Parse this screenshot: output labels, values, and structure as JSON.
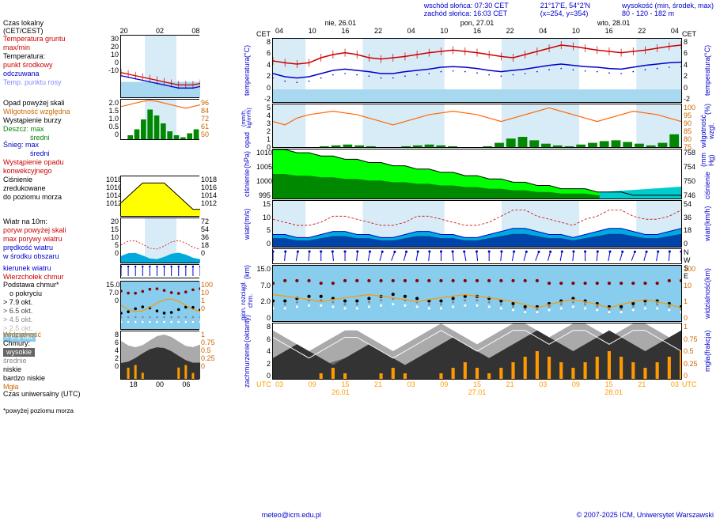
{
  "header": {
    "sunrise": "wschód słońca: 07:30 CET",
    "sunset": "zachód słońca: 16:03 CET",
    "coords": "21°17'E, 54°2'N",
    "xy": "(x=254, y=354)",
    "elevation": "wysokość (min, środek, max)",
    "elev_vals": "80 - 120 - 182 m"
  },
  "left_labels": {
    "local_time": "Czas lokalny",
    "tz": "(CET/CEST)",
    "ground_temp": "Temperatura gruntu",
    "maxmin": "max/min",
    "temp": "Temperatura:",
    "midpoint": "punkt środkowy",
    "felt": "odczuwana",
    "dewpoint": "Temp. punktu rosy",
    "precip_overflow": "Opad powyżej skali",
    "rel_humidity": "Wilgotność względna",
    "storm": "Wystąpienie burzy",
    "rain_max": "Deszcz: max",
    "rain_avg": "średni",
    "snow_max": "Śnieg: max",
    "snow_avg": "średni",
    "conv_precip": "Wystąpienie opadu",
    "conv_precip2": "konwekcyjnego",
    "pressure": "Ciśnienie",
    "pressure2": "zredukowane",
    "pressure3": "do poziomu morza",
    "wind10m": "Wiatr na 10m:",
    "gust_over": "poryw powyżej skali",
    "max_gust": "max porywy wiatru",
    "wind_speed": "prędkość wiatru",
    "wind_center": "w środku obszaru",
    "wind_dir": "kierunek wiatru",
    "cloud_top": "Wierzchołek chmur",
    "cloud_base": "Podstawa chmur*",
    "coverage": "o pokryciu",
    "okt79": "> 7.9 okt.",
    "okt65": "> 6.5 okt.",
    "okt45": "> 4.5 okt.",
    "okt25": "> 2.5 okt.",
    "okt01": "> 0.1 okt.",
    "visibility": "Widzialność",
    "clouds": "Chmury:",
    "high": "wysokie",
    "mid": "średnie",
    "low": "niskie",
    "vlow": "bardzo niskie",
    "fog": "Mgła",
    "utc": "Czas uniwersalny (UTC)",
    "note": "*powyżej poziomu morza"
  },
  "right_labels": {
    "temp": "temperatura",
    "temp_c": "(°C)",
    "precip": "opad",
    "precip_unit": "(mm/h, kg/m²/h)",
    "humidity": "wilgotność wzgl.",
    "humidity_unit": "(%)",
    "pressure": "ciśnienie",
    "pressure_unit": "(hPa)",
    "pressure_r": "ciśnienie",
    "pressure_r_unit": "(mm Hg)",
    "wind": "wiatr",
    "wind_unit": "(m/s)",
    "wind_r": "wiatr",
    "wind_r_unit": "(km/h)",
    "wdir_n": "N",
    "wdir_w": "W",
    "wdir_s": "S",
    "wdir_e": "E",
    "cloud_ext": "pion. rozciągł. chm.",
    "cloud_ext_unit": "(km)",
    "vis": "widzialność",
    "vis_unit": "(km)",
    "cloudiness": "zachmurzenie",
    "cloudiness_unit": "(oktanty)",
    "fog_frac": "mgła",
    "fog_frac_unit": "(frakcja)"
  },
  "time_axis_top": {
    "cet_l": "CET",
    "cet_r": "CET",
    "days": [
      "nie, 26.01",
      "pon, 27.01",
      "wto, 28.01"
    ],
    "hours": [
      "04",
      "10",
      "16",
      "22",
      "04",
      "10",
      "16",
      "22",
      "04",
      "10",
      "16",
      "22",
      "04"
    ]
  },
  "time_axis_bottom": {
    "utc_l": "UTC",
    "utc_r": "UTC",
    "dates": [
      "26.01",
      "27.01",
      "28.01"
    ],
    "hours": [
      "03",
      "09",
      "15",
      "21",
      "03",
      "09",
      "15",
      "21",
      "03",
      "09",
      "15",
      "21",
      "03"
    ]
  },
  "mini_time_top": [
    "20",
    "02",
    "08"
  ],
  "mini_time_bottom": [
    "18",
    "00",
    "06"
  ],
  "footer": {
    "email": "meteo@icm.edu.pl",
    "copyright": "© 2007-2025 ICM, Uniwersytet Warszawski"
  },
  "charts": {
    "temp": {
      "type": "line",
      "ylim_left": [
        -10,
        30
      ],
      "ylim_right": [
        -2,
        8
      ],
      "ticks_left": [
        -10,
        0,
        10,
        20,
        30
      ],
      "ticks_right_big_l": [
        -2,
        0,
        2,
        4,
        6,
        8
      ],
      "ticks_right_big_r": [
        -2,
        0,
        2,
        4,
        6,
        8
      ],
      "bg_color": "#a8d8f0",
      "night_color": "#c0e0f0",
      "red_line_color": "#cc0000",
      "blue_line_color": "#0000cc",
      "lightblue_line_color": "#8888ff",
      "big_red": [
        4.5,
        4.2,
        4.0,
        4.2,
        5.0,
        5.5,
        5.8,
        5.5,
        5.0,
        4.8,
        5.0,
        5.2,
        5.5,
        5.8,
        6.0,
        6.2,
        6.0,
        5.8,
        5.5,
        5.2,
        5.0,
        5.5,
        6.0,
        6.5,
        7.0,
        6.8,
        6.5,
        6.2,
        6.0,
        5.8,
        6.0,
        6.2,
        6.5,
        6.8,
        7.0
      ],
      "big_blue": [
        2.5,
        2.0,
        1.8,
        2.0,
        2.5,
        3.0,
        3.2,
        3.0,
        2.8,
        2.5,
        2.5,
        2.8,
        3.0,
        3.2,
        3.5,
        3.6,
        3.5,
        3.3,
        3.0,
        2.8,
        3.0,
        3.2,
        3.5,
        3.8,
        4.0,
        3.8,
        3.6,
        3.5,
        3.3,
        3.2,
        3.5,
        3.8,
        4.0,
        4.2,
        4.3
      ],
      "mini_red": [
        6,
        5,
        4,
        3,
        2,
        1,
        0,
        -1,
        -2,
        -2,
        -2,
        -1
      ],
      "mini_blue": [
        4,
        3,
        2,
        1,
        0,
        -1,
        -2,
        -3,
        -4,
        -4,
        -4,
        -3
      ]
    },
    "precip": {
      "type": "bar",
      "ylim": [
        0,
        5
      ],
      "ylim_r": [
        75,
        100
      ],
      "ticks_l": [
        0,
        1,
        2,
        3,
        4,
        5
      ],
      "ticks_r": [
        75,
        80,
        85,
        90,
        95,
        100
      ],
      "green_color": "#008800",
      "orange_color": "#ff6600",
      "humidity_line": [
        90,
        88,
        92,
        94,
        95,
        96,
        95,
        94,
        92,
        90,
        88,
        90,
        92,
        94,
        95,
        96,
        95,
        94,
        92,
        90,
        92,
        94,
        96,
        98,
        96,
        94,
        92,
        90,
        92,
        94,
        96,
        95,
        94,
        92,
        90
      ],
      "rain_bars": [
        0,
        0,
        0,
        0,
        0.1,
        0.2,
        0.3,
        0.2,
        0.1,
        0,
        0,
        0.1,
        0.2,
        0.3,
        0.2,
        0.1,
        0,
        0,
        0.1,
        0.5,
        1.0,
        1.2,
        0.8,
        0.4,
        0.2,
        0.1,
        0.3,
        0.5,
        0.7,
        0.8,
        0.6,
        0.4,
        0.2,
        0.5,
        1.5
      ],
      "mini_ticks_l": [
        0,
        0.5,
        1.0,
        1.5,
        2.0
      ],
      "mini_ticks_r": [
        50,
        61,
        72,
        84,
        96
      ],
      "mini_humidity": [
        88,
        90,
        92,
        94,
        95,
        94,
        92,
        90,
        88,
        86,
        88,
        90
      ],
      "mini_rain": [
        0,
        0.2,
        0.5,
        1.0,
        1.5,
        1.2,
        0.8,
        0.4,
        0.2,
        0.1,
        0.3,
        0.5
      ]
    },
    "pressure": {
      "type": "area",
      "ylim": [
        995,
        1010
      ],
      "ylim_r": [
        746,
        758
      ],
      "ticks_l": [
        995,
        1000,
        1005,
        1010
      ],
      "ticks_r": [
        746,
        750,
        754,
        758
      ],
      "fill_high": "#00ff00",
      "fill_low": "#00cccc",
      "dark_green": "#008800",
      "vals": [
        1010,
        1010,
        1009,
        1009,
        1008,
        1008,
        1007,
        1007,
        1006,
        1006,
        1005,
        1005,
        1004,
        1004,
        1003,
        1003,
        1002,
        1002,
        1001,
        1001,
        1000,
        1000,
        999,
        999,
        998,
        998,
        998,
        997,
        997,
        997,
        996,
        996,
        996,
        996,
        996
      ],
      "mini_ylim": [
        1012,
        1018
      ],
      "mini_ticks_l": [
        1012,
        1014,
        1016,
        1018
      ],
      "mini_ticks_r": [
        1012,
        1014,
        1016,
        1018
      ],
      "mini_fill": "#ffff00",
      "mini_vals": [
        1014,
        1015,
        1016,
        1017,
        1017,
        1017,
        1017,
        1016,
        1015,
        1014,
        1013,
        1013
      ]
    },
    "wind": {
      "type": "area",
      "ylim": [
        0,
        15
      ],
      "ylim_r": [
        0,
        54
      ],
      "ticks_l": [
        0,
        5,
        10,
        15
      ],
      "ticks_r": [
        0,
        18,
        36,
        54
      ],
      "blue_fill": "#0044aa",
      "cyan_fill": "#00aadd",
      "speed": [
        4,
        4,
        3,
        3,
        4,
        5,
        5,
        4,
        4,
        3,
        3,
        4,
        5,
        5,
        4,
        4,
        3,
        3,
        4,
        5,
        6,
        6,
        5,
        4,
        4,
        3,
        4,
        5,
        6,
        6,
        5,
        4,
        4,
        5,
        6
      ],
      "gusts": [
        9,
        8,
        7,
        7,
        8,
        10,
        10,
        9,
        8,
        7,
        7,
        8,
        10,
        10,
        9,
        8,
        7,
        7,
        8,
        10,
        12,
        12,
        10,
        9,
        8,
        7,
        9,
        10,
        12,
        12,
        10,
        9,
        9,
        10,
        12
      ],
      "mini_ticks_l": [
        0,
        5,
        10,
        15,
        20
      ],
      "mini_ticks_r": [
        0,
        18,
        36,
        54,
        72
      ]
    },
    "wind_dir": {
      "arrow_color": "#0000cc",
      "dirs": [
        180,
        185,
        190,
        185,
        180,
        175,
        180,
        185,
        190,
        195,
        200,
        195,
        190,
        185,
        180,
        175,
        170,
        175,
        180,
        185,
        190,
        195,
        200,
        195,
        190,
        185,
        180,
        185,
        190,
        195,
        200,
        195,
        190,
        185,
        180
      ]
    },
    "clouds_vert": {
      "type": "scatter",
      "ylim": [
        0,
        15
      ],
      "ylim_r": [
        0,
        100
      ],
      "ticks_l": [
        0,
        2.0,
        7.0,
        15.0
      ],
      "ticks_r": [
        0,
        1,
        10,
        100
      ],
      "bg": "#88ccee",
      "darkred": "#880000",
      "black": "#000",
      "white": "#fff",
      "gray": "#888",
      "orange": "#ff9900",
      "tops": [
        7,
        8,
        8,
        8,
        7,
        7,
        8,
        8,
        8,
        8,
        8,
        8,
        8,
        8,
        8,
        8,
        8,
        8,
        8,
        8,
        8,
        8,
        8,
        7,
        7,
        7,
        7,
        7,
        7,
        7,
        7,
        7,
        7,
        8,
        8
      ],
      "base_black": [
        2,
        2,
        2.5,
        3,
        3,
        2.5,
        2,
        2,
        2.5,
        3,
        3.5,
        3,
        2.5,
        2,
        2,
        2.5,
        3,
        3,
        2.5,
        2,
        1.5,
        1,
        1,
        1.5,
        2,
        2.5,
        2,
        1.5,
        1,
        1,
        1.5,
        2,
        2,
        1.5,
        1
      ],
      "vis": [
        8,
        7,
        6,
        5,
        4,
        5,
        6,
        7,
        8,
        7,
        6,
        5,
        4,
        5,
        6,
        7,
        8,
        7,
        6,
        5,
        4,
        3,
        2,
        3,
        4,
        5,
        4,
        3,
        2,
        3,
        4,
        5,
        4,
        3,
        2
      ],
      "mini_ticks_l": [
        0,
        7.0,
        15.0
      ],
      "mini_ticks_r": [
        0,
        1,
        10,
        100
      ]
    },
    "cloudiness": {
      "type": "area",
      "ylim": [
        0,
        8
      ],
      "ylim_r": [
        0,
        1
      ],
      "ticks_l": [
        0,
        2,
        4,
        6,
        8
      ],
      "ticks_r": [
        0,
        0.25,
        0.5,
        0.75,
        1
      ],
      "dark": "#333",
      "mid": "#666",
      "light": "#aaa",
      "white": "#fff",
      "orange": "#ff9900",
      "high": [
        7,
        6,
        5,
        4,
        5,
        6,
        7,
        7,
        6,
        5,
        4,
        5,
        6,
        7,
        8,
        7,
        6,
        5,
        6,
        7,
        8,
        8,
        7,
        6,
        7,
        8,
        8,
        7,
        6,
        7,
        8,
        8,
        7,
        6,
        5
      ],
      "low": [
        3,
        4,
        5,
        4,
        3,
        2,
        3,
        4,
        5,
        4,
        3,
        2,
        3,
        4,
        5,
        6,
        5,
        4,
        3,
        4,
        5,
        6,
        7,
        6,
        5,
        4,
        5,
        6,
        7,
        6,
        5,
        4,
        5,
        6,
        7
      ],
      "fog": [
        0,
        0,
        0,
        0,
        0.1,
        0.2,
        0.1,
        0,
        0,
        0.1,
        0.2,
        0.1,
        0,
        0,
        0.1,
        0.2,
        0.3,
        0.2,
        0.1,
        0.2,
        0.3,
        0.4,
        0.5,
        0.4,
        0.3,
        0.2,
        0.3,
        0.4,
        0.5,
        0.4,
        0.3,
        0.2,
        0.3,
        0.4,
        0.5
      ]
    }
  },
  "colors": {
    "red": "#cc0000",
    "blue": "#0000cc",
    "green": "#008800",
    "orange": "#ff6600",
    "gray": "#888888",
    "black": "#000000",
    "night": "#d0e8f8",
    "day": "#ffffff"
  }
}
